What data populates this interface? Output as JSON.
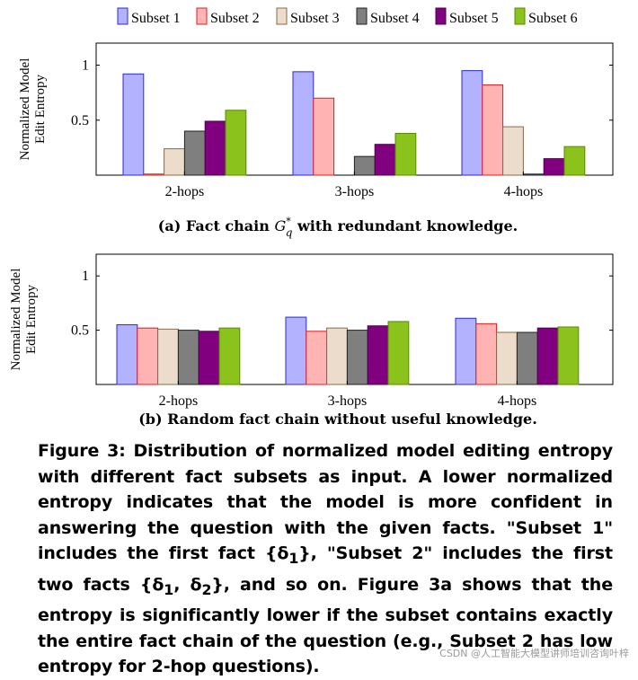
{
  "legend": {
    "colors": [
      "#b2b2ff",
      "#ffb3b3",
      "#ecdccb",
      "#7f7f7f",
      "#800080",
      "#8cc21c"
    ],
    "strokes": [
      "#2b2bd6",
      "#e01d1d",
      "#8a6a4a",
      "#222222",
      "#4a004a",
      "#5a8a00"
    ]
  },
  "chart_data": [
    {
      "type": "bar",
      "panel": "a",
      "caption_prefix": "(a) Fact chain ",
      "caption_symbol": "G",
      "caption_sup": "*",
      "caption_sub": "q",
      "caption_suffix": " with redundant knowledge.",
      "ylabel_line1": "Normalized Model",
      "ylabel_line2": "Edit Entropy",
      "categories": [
        "2-hops",
        "3-hops",
        "4-hops"
      ],
      "ylim": [
        0,
        1.2
      ],
      "yticks": [
        0.5,
        1
      ],
      "ytick_labels": [
        "0.5",
        "1"
      ],
      "series": [
        {
          "name": "Subset 1",
          "values": [
            0.92,
            0.94,
            0.95
          ]
        },
        {
          "name": "Subset 2",
          "values": [
            0.01,
            0.7,
            0.82
          ]
        },
        {
          "name": "Subset 3",
          "values": [
            0.24,
            0.0,
            0.44
          ]
        },
        {
          "name": "Subset 4",
          "values": [
            0.4,
            0.17,
            0.01
          ]
        },
        {
          "name": "Subset 5",
          "values": [
            0.49,
            0.28,
            0.15
          ]
        },
        {
          "name": "Subset 6",
          "values": [
            0.59,
            0.38,
            0.26
          ]
        }
      ]
    },
    {
      "type": "bar",
      "panel": "b",
      "caption": "(b) Random fact chain without useful knowledge.",
      "ylabel_line1": "Normalized Model",
      "ylabel_line2": "Edit Entropy",
      "categories": [
        "2-hops",
        "3-hops",
        "4-hops"
      ],
      "ylim": [
        0,
        1.2
      ],
      "yticks": [
        0.5,
        1
      ],
      "ytick_labels": [
        "0.5",
        "1"
      ],
      "series": [
        {
          "name": "Subset 1",
          "values": [
            0.55,
            0.62,
            0.61
          ]
        },
        {
          "name": "Subset 2",
          "values": [
            0.52,
            0.49,
            0.56
          ]
        },
        {
          "name": "Subset 3",
          "values": [
            0.51,
            0.52,
            0.48
          ]
        },
        {
          "name": "Subset 4",
          "values": [
            0.5,
            0.5,
            0.48
          ]
        },
        {
          "name": "Subset 5",
          "values": [
            0.49,
            0.54,
            0.52
          ]
        },
        {
          "name": "Subset 6",
          "values": [
            0.52,
            0.58,
            0.53
          ]
        }
      ]
    }
  ],
  "figure_caption": {
    "parts": [
      "Figure 3: Distribution of normalized model editing entropy with different fact subsets as input. A lower normalized entropy indicates that the model is more confident in answering the question with the given facts. \"Subset 1\" includes the first fact ",
      "{δ",
      "1",
      "}, \"Subset 2\" includes the first two facts {δ",
      "1",
      ", δ",
      "2",
      "}, and so on. Figure 3a shows that the entropy is significantly lower if the subset contains exactly the entire fact chain of the question (e.g., Subset 2 has low entropy for 2-hop questions)."
    ]
  },
  "watermark": "CSDN @人工智能大模型讲师培训咨询叶梓"
}
